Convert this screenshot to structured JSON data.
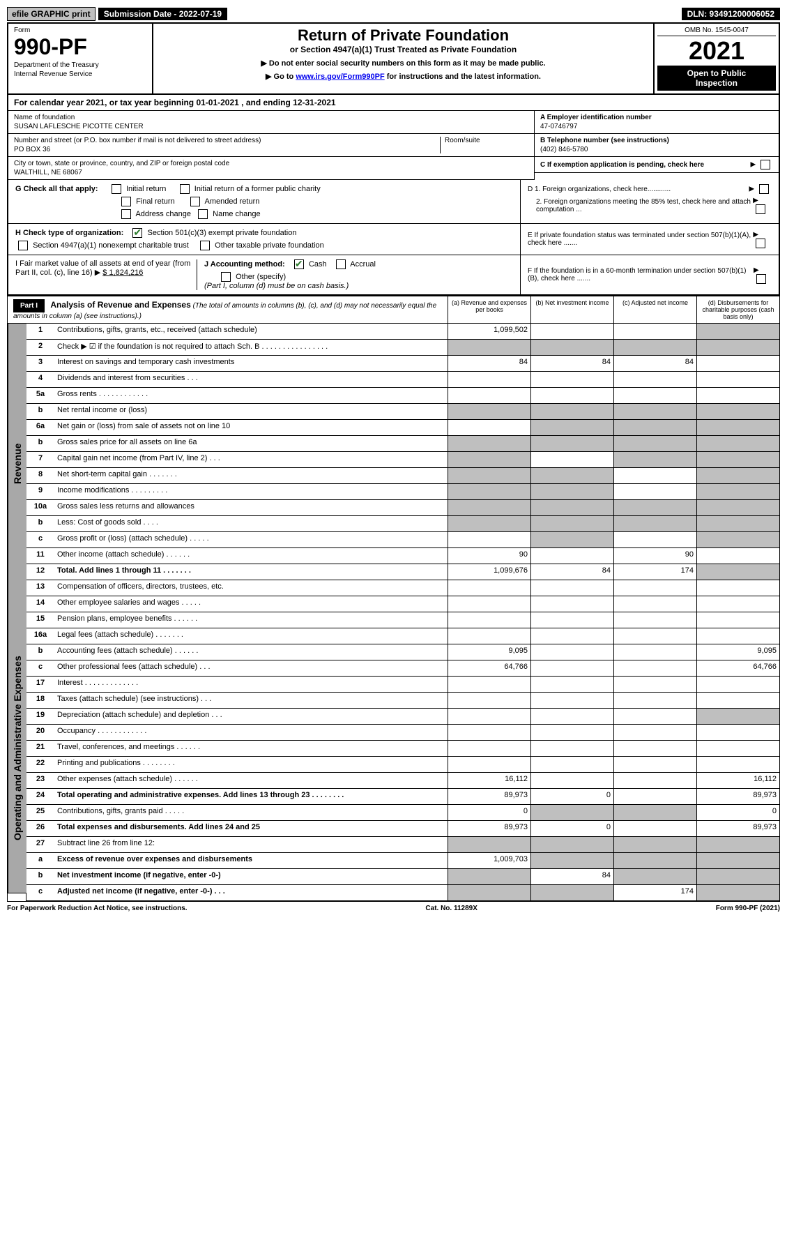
{
  "topbar": {
    "efile": "efile GRAPHIC print",
    "submission": "Submission Date - 2022-07-19",
    "dln": "DLN: 93491200006052"
  },
  "header": {
    "form_label": "Form",
    "form_number": "990-PF",
    "dept1": "Department of the Treasury",
    "dept2": "Internal Revenue Service",
    "title": "Return of Private Foundation",
    "subtitle": "or Section 4947(a)(1) Trust Treated as Private Foundation",
    "inst1": "▶ Do not enter social security numbers on this form as it may be made public.",
    "inst2_prefix": "▶ Go to ",
    "inst2_link": "www.irs.gov/Form990PF",
    "inst2_suffix": " for instructions and the latest information.",
    "omb": "OMB No. 1545-0047",
    "year": "2021",
    "inspection1": "Open to Public",
    "inspection2": "Inspection"
  },
  "calendar": "For calendar year 2021, or tax year beginning 01-01-2021                          , and ending 12-31-2021",
  "foundation": {
    "name_label": "Name of foundation",
    "name": "SUSAN LAFLESCHE PICOTTE CENTER",
    "addr_label": "Number and street (or P.O. box number if mail is not delivered to street address)",
    "addr": "PO BOX 36",
    "room_label": "Room/suite",
    "city_label": "City or town, state or province, country, and ZIP or foreign postal code",
    "city": "WALTHILL, NE  68067",
    "ein_label": "A Employer identification number",
    "ein": "47-0746797",
    "phone_label": "B Telephone number (see instructions)",
    "phone": "(402) 846-5780",
    "c_label": "C If exemption application is pending, check here"
  },
  "checks": {
    "g_label": "G Check all that apply:",
    "g1": "Initial return",
    "g2": "Initial return of a former public charity",
    "g3": "Final return",
    "g4": "Amended return",
    "g5": "Address change",
    "g6": "Name change",
    "h_label": "H Check type of organization:",
    "h1": "Section 501(c)(3) exempt private foundation",
    "h2": "Section 4947(a)(1) nonexempt charitable trust",
    "h3": "Other taxable private foundation",
    "i_label": "I Fair market value of all assets at end of year (from Part II, col. (c), line 16) ▶",
    "i_value": "$  1,824,216",
    "j_label": "J Accounting method:",
    "j1": "Cash",
    "j2": "Accrual",
    "j3": "Other (specify)",
    "j_note": "(Part I, column (d) must be on cash basis.)",
    "d1": "D 1. Foreign organizations, check here............",
    "d2": "2. Foreign organizations meeting the 85% test, check here and attach computation ...",
    "e_label": "E  If private foundation status was terminated under section 507(b)(1)(A), check here .......",
    "f_label": "F  If the foundation is in a 60-month termination under section 507(b)(1)(B), check here ......."
  },
  "part1": {
    "label": "Part I",
    "title": "Analysis of Revenue and Expenses",
    "title_note": "(The total of amounts in columns (b), (c), and (d) may not necessarily equal the amounts in column (a) (see instructions).)",
    "col_a": "(a)    Revenue and expenses per books",
    "col_b": "(b)    Net investment income",
    "col_c": "(c)    Adjusted net income",
    "col_d": "(d)    Disbursements for charitable purposes (cash basis only)"
  },
  "side_labels": {
    "revenue": "Revenue",
    "expenses": "Operating and Administrative Expenses"
  },
  "rows": [
    {
      "no": "1",
      "desc": "Contributions, gifts, grants, etc., received (attach schedule)",
      "a": "1,099,502",
      "d_shaded": true
    },
    {
      "no": "2",
      "desc": "Check ▶ ☑ if the foundation is not required to attach Sch. B    .  .  .  .  .  .  .  .  .  .  .  .  .  .  .  .",
      "all_shaded": true
    },
    {
      "no": "3",
      "desc": "Interest on savings and temporary cash investments",
      "a": "84",
      "b": "84",
      "c": "84"
    },
    {
      "no": "4",
      "desc": "Dividends and interest from securities   .   .   .",
      "a": "",
      "b": "",
      "c": ""
    },
    {
      "no": "5a",
      "desc": "Gross rents   .   .   .   .   .   .   .   .   .   .   .   .",
      "a": "",
      "b": "",
      "c": ""
    },
    {
      "no": "b",
      "desc": "Net rental income or (loss)",
      "inset": true,
      "all_shaded": true
    },
    {
      "no": "6a",
      "desc": "Net gain or (loss) from sale of assets not on line 10",
      "a": "",
      "bcd_shaded": true
    },
    {
      "no": "b",
      "desc": "Gross sales price for all assets on line 6a",
      "inset": true,
      "all_shaded": true
    },
    {
      "no": "7",
      "desc": "Capital gain net income (from Part IV, line 2)   .   .   .",
      "a_shaded": true,
      "b": "",
      "cd_shaded": true
    },
    {
      "no": "8",
      "desc": "Net short-term capital gain   .   .   .   .   .   .   .",
      "ab_shaded": true,
      "c": "",
      "d_shaded": true
    },
    {
      "no": "9",
      "desc": "Income modifications   .   .   .   .   .   .   .   .   .",
      "ab_shaded": true,
      "c": "",
      "d_shaded": true
    },
    {
      "no": "10a",
      "desc": "Gross sales less returns and allowances",
      "inset": true,
      "all_shaded": true
    },
    {
      "no": "b",
      "desc": "Less: Cost of goods sold   .   .   .   .",
      "inset": true,
      "all_shaded": true
    },
    {
      "no": "c",
      "desc": "Gross profit or (loss) (attach schedule)   .   .   .   .   .",
      "a": "",
      "b_shaded": true,
      "c": "",
      "d_shaded": true
    },
    {
      "no": "11",
      "desc": "Other income (attach schedule)   .   .   .   .   .   .",
      "a": "90",
      "b": "",
      "c": "90"
    },
    {
      "no": "12",
      "desc": "Total. Add lines 1 through 11   .   .   .   .   .   .   .",
      "bold": true,
      "a": "1,099,676",
      "b": "84",
      "c": "174",
      "d_shaded": true
    },
    {
      "no": "13",
      "desc": "Compensation of officers, directors, trustees, etc.",
      "a": "",
      "b": "",
      "c": "",
      "d": ""
    },
    {
      "no": "14",
      "desc": "Other employee salaries and wages   .   .   .   .   .",
      "a": "",
      "b": "",
      "c": "",
      "d": ""
    },
    {
      "no": "15",
      "desc": "Pension plans, employee benefits   .   .   .   .   .   .",
      "a": "",
      "b": "",
      "c": "",
      "d": ""
    },
    {
      "no": "16a",
      "desc": "Legal fees (attach schedule)   .   .   .   .   .   .   .",
      "a": "",
      "b": "",
      "c": "",
      "d": ""
    },
    {
      "no": "b",
      "desc": "Accounting fees (attach schedule)   .   .   .   .   .   .",
      "a": "9,095",
      "b": "",
      "c": "",
      "d": "9,095"
    },
    {
      "no": "c",
      "desc": "Other professional fees (attach schedule)   .   .   .",
      "a": "64,766",
      "b": "",
      "c": "",
      "d": "64,766"
    },
    {
      "no": "17",
      "desc": "Interest   .   .   .   .   .   .   .   .   .   .   .   .   .",
      "a": "",
      "b": "",
      "c": "",
      "d": ""
    },
    {
      "no": "18",
      "desc": "Taxes (attach schedule) (see instructions)   .   .   .",
      "a": "",
      "b": "",
      "c": "",
      "d": ""
    },
    {
      "no": "19",
      "desc": "Depreciation (attach schedule) and depletion   .   .   .",
      "a": "",
      "b": "",
      "c": "",
      "d_shaded": true
    },
    {
      "no": "20",
      "desc": "Occupancy   .   .   .   .   .   .   .   .   .   .   .   .",
      "a": "",
      "b": "",
      "c": "",
      "d": ""
    },
    {
      "no": "21",
      "desc": "Travel, conferences, and meetings   .   .   .   .   .   .",
      "a": "",
      "b": "",
      "c": "",
      "d": ""
    },
    {
      "no": "22",
      "desc": "Printing and publications   .   .   .   .   .   .   .   .",
      "a": "",
      "b": "",
      "c": "",
      "d": ""
    },
    {
      "no": "23",
      "desc": "Other expenses (attach schedule)   .   .   .   .   .   .",
      "a": "16,112",
      "b": "",
      "c": "",
      "d": "16,112"
    },
    {
      "no": "24",
      "desc": "Total operating and administrative expenses. Add lines 13 through 23   .   .   .   .   .   .   .   .",
      "bold": true,
      "a": "89,973",
      "b": "0",
      "c": "",
      "d": "89,973"
    },
    {
      "no": "25",
      "desc": "Contributions, gifts, grants paid   .   .   .   .   .",
      "a": "0",
      "bc_shaded": true,
      "d": "0"
    },
    {
      "no": "26",
      "desc": "Total expenses and disbursements. Add lines 24 and 25",
      "bold": true,
      "a": "89,973",
      "b": "0",
      "c": "",
      "d": "89,973"
    },
    {
      "no": "27",
      "desc": "Subtract line 26 from line 12:",
      "all_shaded": true
    },
    {
      "no": "a",
      "desc": "Excess of revenue over expenses and disbursements",
      "bold": true,
      "a": "1,009,703",
      "bcd_shaded": true
    },
    {
      "no": "b",
      "desc": "Net investment income (if negative, enter -0-)",
      "bold": true,
      "a_shaded": true,
      "b": "84",
      "cd_shaded": true
    },
    {
      "no": "c",
      "desc": "Adjusted net income (if negative, enter -0-)   .   .   .",
      "bold": true,
      "ab_shaded": true,
      "c": "174",
      "d_shaded": true
    }
  ],
  "footer": {
    "left": "For Paperwork Reduction Act Notice, see instructions.",
    "center": "Cat. No. 11289X",
    "right": "Form 990-PF (2021)"
  },
  "colors": {
    "shade": "#bfbfbf",
    "side": "#a8a8a8"
  }
}
